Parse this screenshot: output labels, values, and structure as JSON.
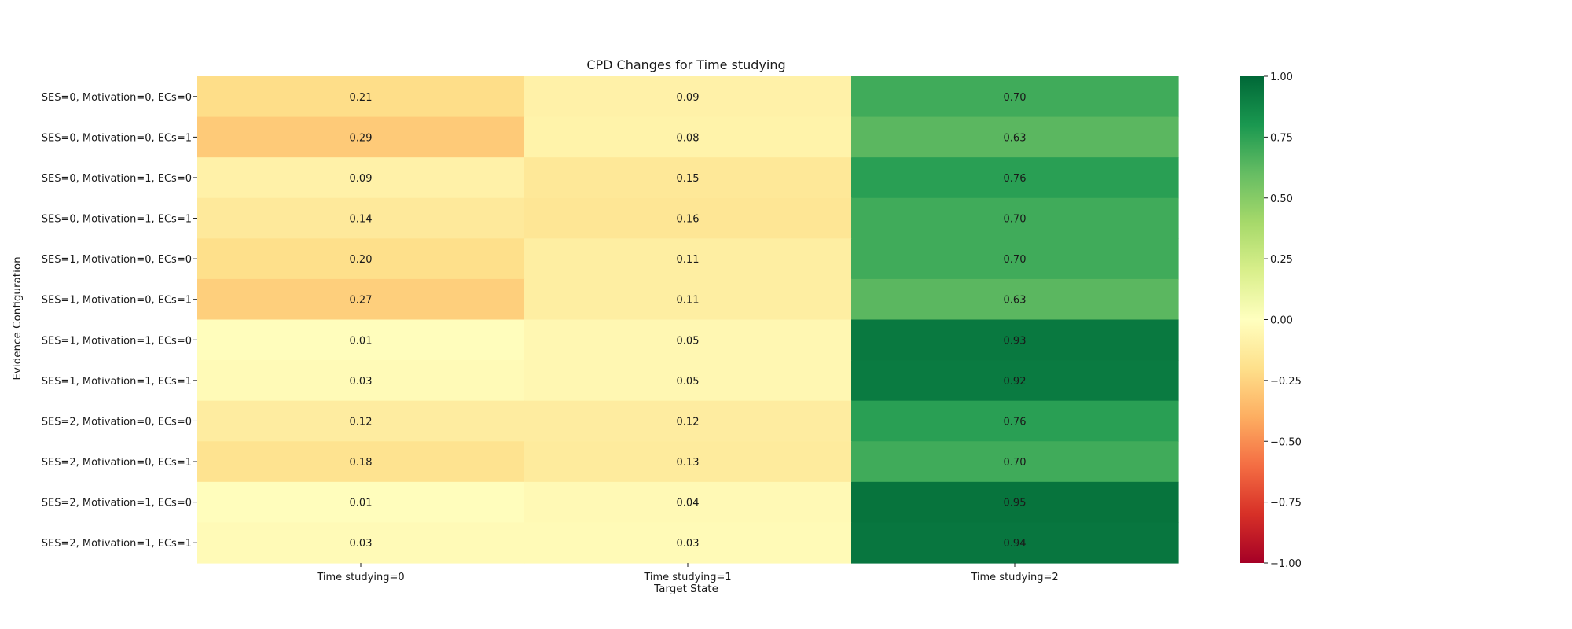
{
  "chart_data": {
    "type": "heatmap",
    "title": "CPD Changes for Time studying",
    "xlabel": "Target State",
    "ylabel": "Evidence Configuration",
    "x_categories": [
      "Time studying=0",
      "Time studying=1",
      "Time studying=2"
    ],
    "y_categories": [
      "SES=0, Motivation=0, ECs=0",
      "SES=0, Motivation=0, ECs=1",
      "SES=0, Motivation=1, ECs=0",
      "SES=0, Motivation=1, ECs=1",
      "SES=1, Motivation=0, ECs=0",
      "SES=1, Motivation=0, ECs=1",
      "SES=1, Motivation=1, ECs=0",
      "SES=1, Motivation=1, ECs=1",
      "SES=2, Motivation=0, ECs=0",
      "SES=2, Motivation=0, ECs=1",
      "SES=2, Motivation=1, ECs=0",
      "SES=2, Motivation=1, ECs=1"
    ],
    "values": [
      [
        -0.21,
        -0.09,
        0.7
      ],
      [
        -0.29,
        -0.08,
        0.63
      ],
      [
        -0.09,
        -0.15,
        0.76
      ],
      [
        -0.14,
        -0.16,
        0.7
      ],
      [
        -0.2,
        -0.11,
        0.7
      ],
      [
        -0.27,
        -0.11,
        0.63
      ],
      [
        -0.01,
        -0.05,
        0.93
      ],
      [
        -0.03,
        -0.05,
        0.92
      ],
      [
        -0.12,
        -0.12,
        0.76
      ],
      [
        -0.18,
        -0.13,
        0.7
      ],
      [
        -0.01,
        -0.04,
        0.95
      ],
      [
        -0.03,
        -0.03,
        0.94
      ]
    ],
    "annotations": [
      [
        "0.21",
        "0.09",
        "0.70"
      ],
      [
        "0.29",
        "0.08",
        "0.63"
      ],
      [
        "0.09",
        "0.15",
        "0.76"
      ],
      [
        "0.14",
        "0.16",
        "0.70"
      ],
      [
        "0.20",
        "0.11",
        "0.70"
      ],
      [
        "0.27",
        "0.11",
        "0.63"
      ],
      [
        "0.01",
        "0.05",
        "0.93"
      ],
      [
        "0.03",
        "0.05",
        "0.92"
      ],
      [
        "0.12",
        "0.12",
        "0.76"
      ],
      [
        "0.18",
        "0.13",
        "0.70"
      ],
      [
        "0.01",
        "0.04",
        "0.95"
      ],
      [
        "0.03",
        "0.03",
        "0.94"
      ]
    ],
    "colormap": "RdYlGn",
    "vmin": -1.0,
    "vmax": 1.0,
    "colorbar_ticks": [
      "1.00",
      "0.75",
      "0.50",
      "0.25",
      "0.00",
      "−0.25",
      "−0.50",
      "−0.75",
      "−1.00"
    ],
    "colorbar_tick_values": [
      1.0,
      0.75,
      0.5,
      0.25,
      0.0,
      -0.25,
      -0.5,
      -0.75,
      -1.0
    ],
    "grid": false
  }
}
